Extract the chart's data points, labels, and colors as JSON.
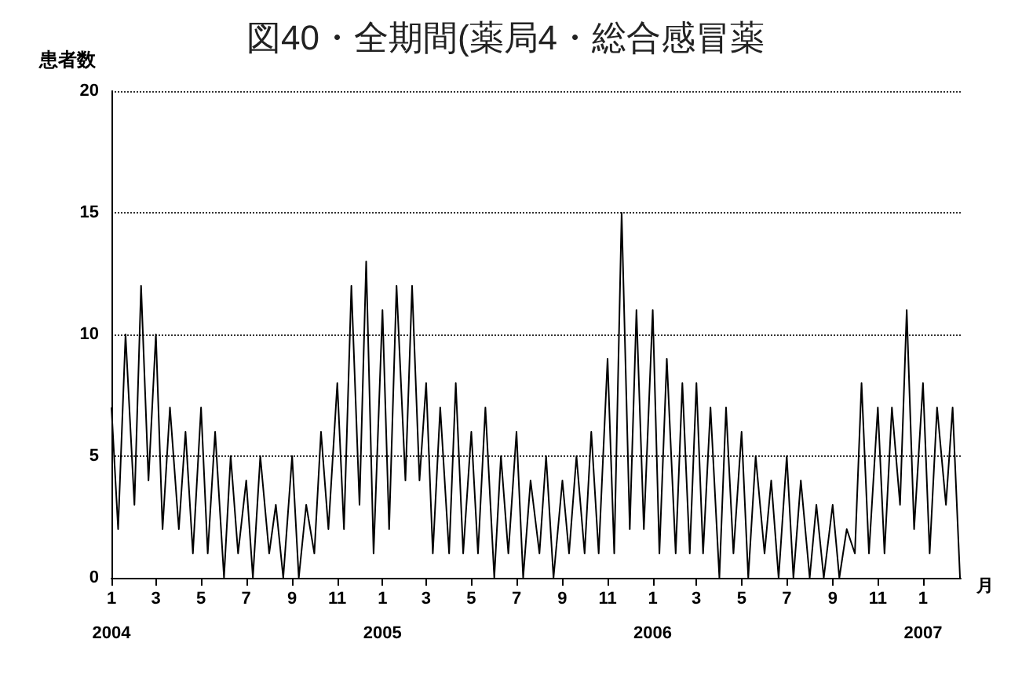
{
  "chart_data": {
    "type": "line",
    "title": "図40・全期間(薬局4・総合感冒薬",
    "ylabel": "患者数",
    "xlabel": "月",
    "x": [
      "2004-01-01",
      "2004-01-10",
      "2004-01-20",
      "2004-02-01",
      "2004-02-10",
      "2004-02-20",
      "2004-03-01",
      "2004-03-10",
      "2004-03-20",
      "2004-04-01",
      "2004-04-10",
      "2004-04-20",
      "2004-05-01",
      "2004-05-10",
      "2004-05-20",
      "2004-06-01",
      "2004-06-10",
      "2004-06-20",
      "2004-07-01",
      "2004-07-10",
      "2004-07-20",
      "2004-08-01",
      "2004-08-10",
      "2004-08-20",
      "2004-09-01",
      "2004-09-10",
      "2004-09-20",
      "2004-10-01",
      "2004-10-10",
      "2004-10-20",
      "2004-11-01",
      "2004-11-10",
      "2004-11-20",
      "2004-12-01",
      "2004-12-10",
      "2004-12-20",
      "2005-01-01",
      "2005-01-10",
      "2005-01-20",
      "2005-02-01",
      "2005-02-10",
      "2005-02-20",
      "2005-03-01",
      "2005-03-10",
      "2005-03-20",
      "2005-04-01",
      "2005-04-10",
      "2005-04-20",
      "2005-05-01",
      "2005-05-10",
      "2005-05-20",
      "2005-06-01",
      "2005-06-10",
      "2005-06-20",
      "2005-07-01",
      "2005-07-10",
      "2005-07-20",
      "2005-08-01",
      "2005-08-10",
      "2005-08-20",
      "2005-09-01",
      "2005-09-10",
      "2005-09-20",
      "2005-10-01",
      "2005-10-10",
      "2005-10-20",
      "2005-11-01",
      "2005-11-10",
      "2005-11-20",
      "2005-12-01",
      "2005-12-10",
      "2005-12-20",
      "2006-01-01",
      "2006-01-10",
      "2006-01-20",
      "2006-02-01",
      "2006-02-10",
      "2006-02-20",
      "2006-03-01",
      "2006-03-10",
      "2006-03-20",
      "2006-04-01",
      "2006-04-10",
      "2006-04-20",
      "2006-05-01",
      "2006-05-10",
      "2006-05-20",
      "2006-06-01",
      "2006-06-10",
      "2006-06-20",
      "2006-07-01",
      "2006-07-10",
      "2006-07-20",
      "2006-08-01",
      "2006-08-10",
      "2006-08-20",
      "2006-09-01",
      "2006-09-10",
      "2006-09-20",
      "2006-10-01",
      "2006-10-10",
      "2006-10-20",
      "2006-11-01",
      "2006-11-10",
      "2006-11-20",
      "2006-12-01",
      "2006-12-10",
      "2006-12-20",
      "2007-01-01",
      "2007-01-10",
      "2007-01-20",
      "2007-02-01",
      "2007-02-10",
      "2007-02-20"
    ],
    "series": [
      {
        "color": "#000000",
        "values": [
          7,
          2,
          10,
          3,
          12,
          4,
          10,
          2,
          7,
          2,
          6,
          1,
          7,
          1,
          6,
          0,
          5,
          1,
          4,
          0,
          5,
          1,
          3,
          0,
          5,
          0,
          3,
          1,
          6,
          2,
          8,
          2,
          12,
          3,
          13,
          1,
          11,
          2,
          12,
          4,
          12,
          4,
          8,
          1,
          7,
          1,
          8,
          1,
          6,
          1,
          7,
          0,
          5,
          1,
          6,
          0,
          4,
          1,
          5,
          0,
          4,
          1,
          5,
          1,
          6,
          1,
          9,
          1,
          15,
          2,
          11,
          2,
          11,
          1,
          9,
          1,
          8,
          1,
          8,
          1,
          7,
          0,
          7,
          1,
          6,
          0,
          5,
          1,
          4,
          0,
          5,
          0,
          4,
          0,
          3,
          0,
          3,
          0,
          2,
          1,
          8,
          1,
          7,
          1,
          7,
          3,
          11,
          2,
          8,
          1,
          7,
          3,
          7,
          0
        ]
      }
    ],
    "xlim": [
      "2004-01-01",
      "2007-02-21"
    ],
    "xticks": [
      {
        "value": "2004-01-01",
        "label": "1\n\n2004"
      },
      {
        "value": "2004-03-01",
        "label": "3"
      },
      {
        "value": "2004-05-01",
        "label": "5"
      },
      {
        "value": "2004-07-01",
        "label": "7"
      },
      {
        "value": "2004-09-01",
        "label": "9"
      },
      {
        "value": "2004-11-01",
        "label": "11"
      },
      {
        "value": "2005-01-01",
        "label": "1\n\n2005"
      },
      {
        "value": "2005-03-01",
        "label": "3"
      },
      {
        "value": "2005-05-01",
        "label": "5"
      },
      {
        "value": "2005-07-01",
        "label": "7"
      },
      {
        "value": "2005-09-01",
        "label": "9"
      },
      {
        "value": "2005-11-01",
        "label": "11"
      },
      {
        "value": "2006-01-01",
        "label": "1\n\n2006"
      },
      {
        "value": "2006-03-01",
        "label": "3"
      },
      {
        "value": "2006-05-01",
        "label": "5"
      },
      {
        "value": "2006-07-01",
        "label": "7"
      },
      {
        "value": "2006-09-01",
        "label": "9"
      },
      {
        "value": "2006-11-01",
        "label": "11"
      },
      {
        "value": "2007-01-01",
        "label": "1\n\n2007"
      }
    ],
    "ylim": [
      0,
      20
    ],
    "yticks": [
      0,
      5,
      10,
      15,
      20
    ],
    "grid": "y"
  }
}
